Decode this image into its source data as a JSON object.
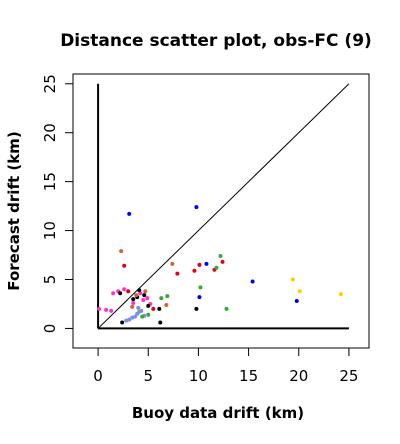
{
  "chart_data": {
    "type": "scatter",
    "title": "Distance scatter plot, obs-FC (9)",
    "xlabel": "Buoy data drift (km)",
    "ylabel": "Forecast drift (km)",
    "xlim": [
      -2.5,
      27
    ],
    "ylim": [
      -2,
      26
    ],
    "x_ticks": [
      0,
      5,
      10,
      15,
      20,
      25
    ],
    "y_ticks": [
      0,
      5,
      10,
      15,
      20,
      25
    ],
    "grid": false,
    "legend": "none",
    "reference_lines": [
      {
        "kind": "diagonal",
        "from": [
          0,
          0
        ],
        "to": [
          25,
          25
        ],
        "color": "#000000"
      },
      {
        "kind": "vertical",
        "from": [
          0,
          0
        ],
        "to": [
          0,
          25
        ],
        "color": "#000000"
      },
      {
        "kind": "horizontal",
        "from": [
          0,
          0
        ],
        "to": [
          25,
          0
        ],
        "color": "#000000"
      }
    ],
    "series": [
      {
        "color": "#ff33cc",
        "points": [
          [
            0.1,
            2.0
          ],
          [
            0.8,
            1.9
          ],
          [
            1.3,
            1.8
          ],
          [
            1.5,
            3.6
          ],
          [
            2.0,
            3.8
          ],
          [
            2.6,
            4.0
          ],
          [
            3.5,
            2.6
          ],
          [
            4.5,
            2.9
          ],
          [
            4.9,
            3.1
          ],
          [
            4.2,
            3.6
          ],
          [
            5.2,
            2.5
          ]
        ]
      },
      {
        "color": "#7f8fdd",
        "points": [
          [
            2.8,
            0.8
          ],
          [
            3.1,
            0.9
          ],
          [
            3.4,
            1.1
          ],
          [
            3.7,
            1.2
          ],
          [
            3.9,
            1.5
          ],
          [
            4.1,
            1.7
          ],
          [
            4.3,
            1.8
          ],
          [
            4.6,
            1.3
          ],
          [
            4.0,
            2.1
          ]
        ]
      },
      {
        "color": "#000000",
        "points": [
          [
            2.4,
            0.6
          ],
          [
            3.5,
            3.0
          ],
          [
            3.9,
            3.2
          ],
          [
            4.1,
            3.9
          ],
          [
            4.6,
            3.4
          ],
          [
            5.0,
            2.3
          ],
          [
            6.2,
            0.6
          ],
          [
            6.1,
            2.0
          ],
          [
            9.8,
            2.0
          ],
          [
            2.2,
            3.6
          ]
        ]
      },
      {
        "color": "#e0001a",
        "points": [
          [
            2.6,
            6.4
          ],
          [
            3.0,
            3.8
          ],
          [
            5.5,
            2.0
          ],
          [
            7.9,
            5.6
          ],
          [
            9.6,
            5.9
          ],
          [
            10.1,
            6.5
          ],
          [
            11.6,
            6.0
          ],
          [
            12.4,
            6.8
          ]
        ]
      },
      {
        "color": "#cc6633",
        "points": [
          [
            2.3,
            7.9
          ],
          [
            3.8,
            3.4
          ],
          [
            4.7,
            3.8
          ],
          [
            7.4,
            6.6
          ],
          [
            6.8,
            2.4
          ],
          [
            3.4,
            2.2
          ]
        ]
      },
      {
        "color": "#33aa33",
        "points": [
          [
            4.4,
            1.2
          ],
          [
            6.3,
            3.1
          ],
          [
            6.9,
            3.3
          ],
          [
            10.2,
            4.2
          ],
          [
            11.8,
            6.2
          ],
          [
            12.2,
            7.4
          ],
          [
            12.8,
            2.0
          ],
          [
            5.0,
            1.4
          ]
        ]
      },
      {
        "color": "#0000ee",
        "points": [
          [
            3.1,
            11.7
          ],
          [
            9.8,
            12.4
          ],
          [
            10.8,
            6.6
          ],
          [
            10.1,
            3.2
          ],
          [
            15.4,
            4.8
          ],
          [
            19.8,
            2.8
          ]
        ]
      },
      {
        "color": "#ffcc00",
        "points": [
          [
            19.4,
            5.0
          ],
          [
            20.1,
            3.8
          ],
          [
            24.2,
            3.5
          ]
        ]
      }
    ]
  }
}
